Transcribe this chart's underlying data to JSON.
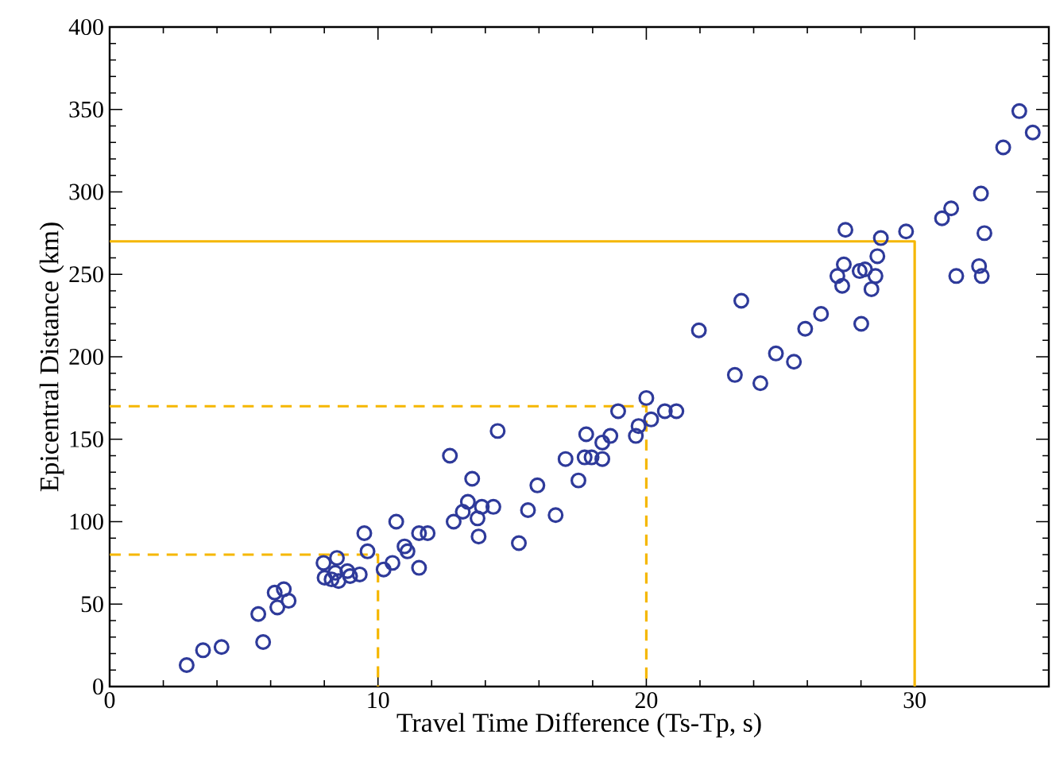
{
  "chart_data": {
    "type": "scatter",
    "xlabel": "Travel Time Difference (Ts-Tp, s)",
    "ylabel": "Epicentral Distance (km)",
    "xlim": [
      0,
      35
    ],
    "ylim": [
      0,
      400
    ],
    "xticks": [
      0,
      10,
      20,
      30
    ],
    "yticks": [
      0,
      50,
      100,
      150,
      200,
      250,
      300,
      350,
      400
    ],
    "series": [
      {
        "color": "#2e3a9a",
        "marker": "circle",
        "x": [
          2.87,
          3.48,
          4.17,
          5.54,
          5.72,
          6.15,
          6.25,
          6.49,
          6.67,
          7.97,
          8.01,
          8.27,
          8.47,
          8.41,
          8.53,
          8.86,
          8.96,
          9.32,
          9.49,
          9.61,
          10.21,
          10.54,
          10.68,
          10.99,
          11.1,
          11.53,
          11.53,
          11.85,
          12.68,
          12.82,
          13.16,
          13.35,
          13.51,
          13.71,
          13.75,
          13.87,
          14.3,
          14.46,
          15.25,
          15.59,
          15.94,
          16.62,
          16.99,
          17.47,
          17.76,
          17.7,
          17.96,
          18.36,
          18.36,
          18.66,
          18.95,
          19.61,
          19.71,
          20.0,
          20.18,
          20.69,
          21.12,
          21.96,
          23.3,
          23.54,
          24.25,
          24.83,
          25.5,
          25.92,
          26.51,
          27.42,
          27.36,
          27.12,
          27.3,
          28.01,
          27.95,
          28.15,
          28.54,
          28.39,
          28.61,
          28.74,
          29.68,
          31.02,
          31.36,
          31.55,
          32.47,
          32.6,
          32.4,
          32.5,
          33.3,
          33.9,
          34.4
        ],
        "values": [
          13,
          22,
          24,
          44,
          27,
          57,
          48,
          59,
          52,
          75,
          66,
          65,
          78,
          69,
          64,
          70,
          67,
          68,
          93,
          82,
          71,
          75,
          100,
          85,
          82,
          72,
          93,
          93,
          140,
          100,
          106,
          112,
          126,
          102,
          91,
          109,
          109,
          155,
          87,
          107,
          122,
          104,
          138,
          125,
          153,
          139,
          139,
          138,
          148,
          152,
          167,
          152,
          158,
          175,
          162,
          167,
          167,
          216,
          189,
          234,
          184,
          202,
          197,
          217,
          226,
          277,
          256,
          249,
          243,
          220,
          252,
          253,
          249,
          241,
          261,
          272,
          276,
          284,
          290,
          249,
          299,
          275,
          255,
          249,
          327,
          349,
          336
        ]
      },
      {
        "type": "line",
        "color": "#f5b700",
        "marker": "none",
        "line_style": "dashed",
        "x": [
          0,
          10,
          10
        ],
        "values": [
          80,
          80,
          0
        ]
      },
      {
        "type": "line",
        "color": "#f5b700",
        "marker": "none",
        "line_style": "dashed",
        "x": [
          0,
          20,
          20
        ],
        "values": [
          170,
          170,
          0
        ]
      },
      {
        "type": "line",
        "color": "#f5b700",
        "marker": "none",
        "line_style": "solid",
        "x": [
          0,
          30,
          30
        ],
        "values": [
          270,
          270,
          0
        ]
      }
    ]
  }
}
